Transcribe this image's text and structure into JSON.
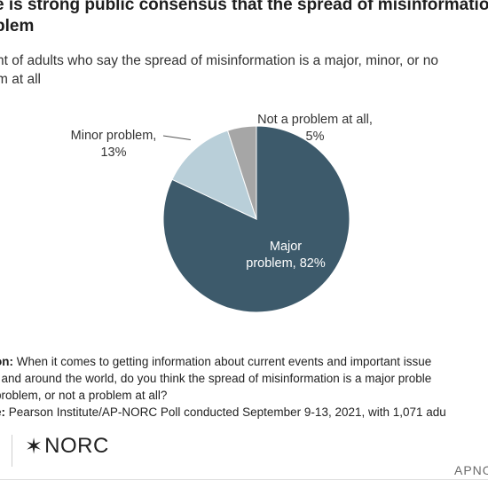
{
  "title_lines": [
    "e is strong public consensus that the spread of misinformation",
    "blem"
  ],
  "subtitle_lines": [
    "nt of adults who say the spread of misinformation is a major, minor, or no",
    "m at all"
  ],
  "chart_data": {
    "type": "pie",
    "slices": [
      {
        "name": "Major problem",
        "value": 82,
        "label_lines": [
          "Major",
          "problem, 82%"
        ],
        "color": "#3d5a6b"
      },
      {
        "name": "Minor problem",
        "value": 13,
        "label_lines": [
          "Minor problem,",
          "13%"
        ],
        "color": "#b9cfd9"
      },
      {
        "name": "Not a problem at all",
        "value": 5,
        "label_lines": [
          "Not a problem at all,",
          "5%"
        ],
        "color": "#a6a6a6"
      }
    ]
  },
  "notes": {
    "question_label": "on:",
    "question_text": " When it comes to getting information about current events and important issue",
    "question_line2": ". and around the world, do you think the spread of misinformation is a major proble",
    "question_line3": "problem, or not a problem at all?",
    "source_label": "e:",
    "source_text": " Pearson Institute/AP-NORC Poll conducted September 9-13, 2021, with 1,071 adu"
  },
  "logo": {
    "mark": "✶",
    "text": "NORC"
  },
  "source_tag": "APNO",
  "colors": {
    "label_on_dark": "#ffffff",
    "label_outside": "#333333",
    "leader_line": "#555555"
  }
}
